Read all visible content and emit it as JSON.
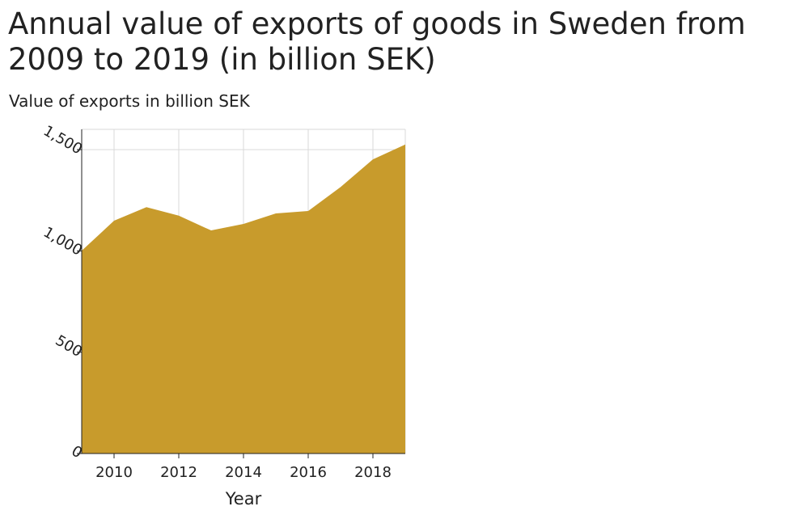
{
  "chart_data": {
    "type": "area",
    "title": "Annual value of exports of goods in Sweden from 2009 to 2019 (in billion SEK)",
    "xlabel": "Year",
    "ylabel": "Value of exports in billion SEK",
    "x": [
      2009,
      2010,
      2011,
      2012,
      2013,
      2014,
      2015,
      2016,
      2017,
      2018,
      2019
    ],
    "series": [
      {
        "values": [
          1001,
          1149,
          1216,
          1174,
          1101,
          1133,
          1185,
          1197,
          1315,
          1452,
          1525
        ]
      }
    ],
    "xlim": [
      2009,
      2019
    ],
    "ylim": [
      0,
      1600
    ],
    "x_ticks": [
      2010,
      2012,
      2014,
      2016,
      2018
    ],
    "y_ticks": [
      0,
      500,
      1000,
      1500
    ],
    "y_tick_labels": [
      "0",
      "500",
      "1,000",
      "1,500"
    ],
    "grid": true,
    "legend": "none",
    "colors": {
      "fill": "#C89B2C",
      "grid": "#d9d9d9",
      "axis": "#222222"
    }
  }
}
